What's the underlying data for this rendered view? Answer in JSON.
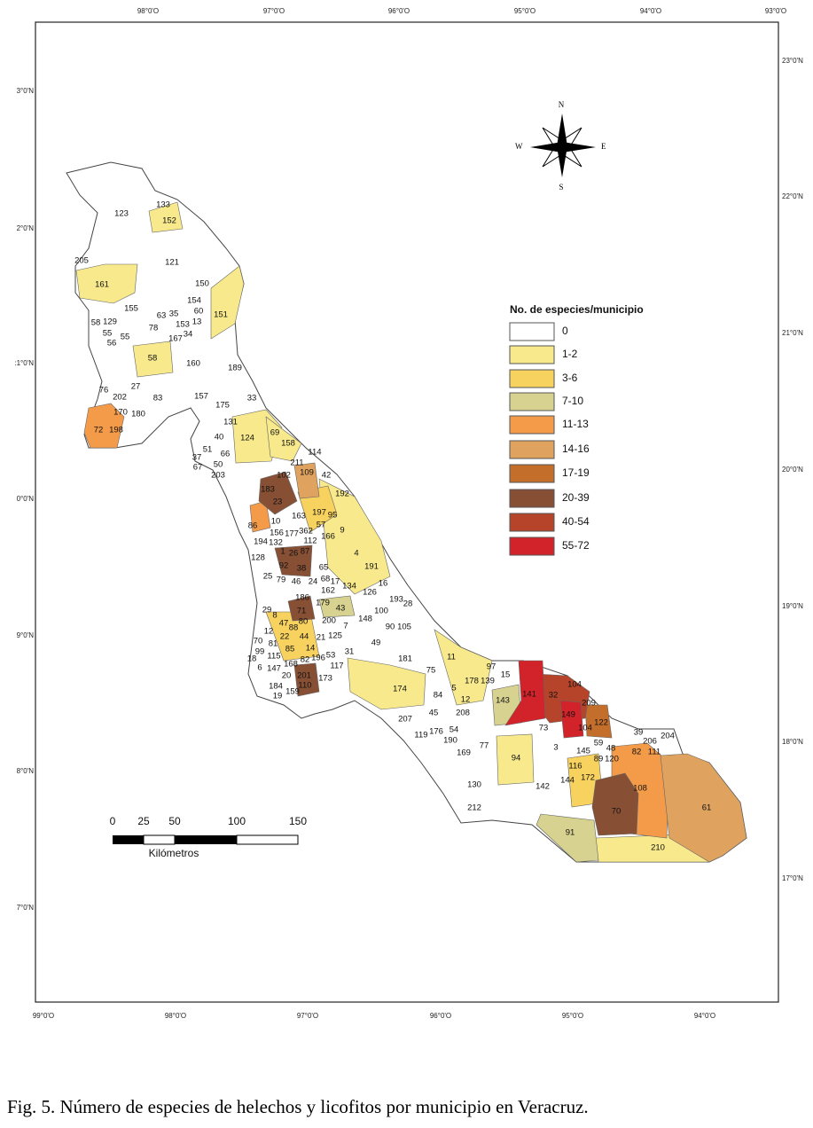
{
  "map": {
    "top_axis_labels": [
      "98°0'O",
      "97°0'O",
      "96°0'O",
      "95°0'O",
      "94°0'O",
      "93°0'O"
    ],
    "bottom_axis_labels": [
      "99°0'O",
      "98°0'O",
      "97°0'O",
      "96°0'O",
      "95°0'O",
      "94°0'O"
    ],
    "left_axis_labels": [
      "3°0'N",
      "2°0'N",
      ":1°0'N",
      "0°0'N",
      "9°0'N",
      "8°0'N",
      "7°0'N"
    ],
    "right_axis_labels": [
      "23°0'N",
      "22°0'N",
      "21°0'N",
      "20°0'N",
      "19°0'N",
      "18°0'N",
      "17°0'N"
    ],
    "compass": {
      "n": "N",
      "s": "S",
      "e": "E",
      "w": "W"
    },
    "legend": {
      "title": "No. de especies/municipio",
      "items": [
        {
          "label": "0",
          "color": "#ffffff"
        },
        {
          "label": "1-2",
          "color": "#f7e98c"
        },
        {
          "label": "3-6",
          "color": "#f8d25e"
        },
        {
          "label": "7-10",
          "color": "#d7d28f"
        },
        {
          "label": "11-13",
          "color": "#f49b4a"
        },
        {
          "label": "14-16",
          "color": "#dfa25f"
        },
        {
          "label": "17-19",
          "color": "#c46e2c"
        },
        {
          "label": "20-39",
          "color": "#875035"
        },
        {
          "label": "40-54",
          "color": "#b5442a"
        },
        {
          "label": "55-72",
          "color": "#d2232a"
        }
      ]
    },
    "scale_bar": {
      "ticks": [
        "0",
        "25",
        "50",
        "100",
        "150"
      ],
      "unit": "Kilómetros"
    },
    "municipality_labels": [
      "123",
      "133",
      "152",
      "205",
      "121",
      "161",
      "150",
      "154",
      "155",
      "60",
      "151",
      "63",
      "35",
      "58",
      "129",
      "153",
      "13",
      "78",
      "55",
      "55",
      "56",
      "167",
      "34",
      "58",
      "160",
      "189",
      "76",
      "27",
      "83",
      "157",
      "175",
      "33",
      "202",
      "170",
      "180",
      "131",
      "72",
      "198",
      "124",
      "40",
      "69",
      "158",
      "51",
      "66",
      "37",
      "67",
      "50",
      "203",
      "211",
      "102",
      "114",
      "183",
      "23",
      "109",
      "42",
      "192",
      "197",
      "95",
      "163",
      "86",
      "10",
      "57",
      "156",
      "177",
      "362",
      "166",
      "9",
      "194",
      "132",
      "112",
      "1",
      "26",
      "87",
      "128",
      "4",
      "92",
      "38",
      "65",
      "191",
      "25",
      "79",
      "46",
      "24",
      "68",
      "17",
      "134",
      "162",
      "126",
      "16",
      "186",
      "179",
      "43",
      "193",
      "28",
      "100",
      "29",
      "8",
      "71",
      "47",
      "88",
      "200",
      "7",
      "148",
      "90",
      "105",
      "12",
      "80",
      "44",
      "21",
      "22",
      "125",
      "49",
      "70",
      "81",
      "85",
      "14",
      "99",
      "115",
      "196",
      "53",
      "31",
      "18",
      "6",
      "147",
      "168",
      "82",
      "117",
      "181",
      "11",
      "97",
      "20",
      "201",
      "173",
      "75",
      "178",
      "139",
      "15",
      "184",
      "110",
      "104",
      "19",
      "159",
      "174",
      "5",
      "84",
      "12",
      "141",
      "32",
      "209",
      "143",
      "45",
      "207",
      "208",
      "149",
      "122",
      "104",
      "119",
      "176",
      "54",
      "73",
      "39",
      "204",
      "190",
      "59",
      "206",
      "77",
      "3",
      "145",
      "48",
      "111",
      "169",
      "82",
      "89",
      "120",
      "94",
      "116",
      "172",
      "144",
      "130",
      "142",
      "108",
      "61",
      "212",
      "70",
      "91",
      "210"
    ]
  },
  "caption": "Fig. 5. Número de especies de helechos y licofitos por municipio en Veracruz."
}
